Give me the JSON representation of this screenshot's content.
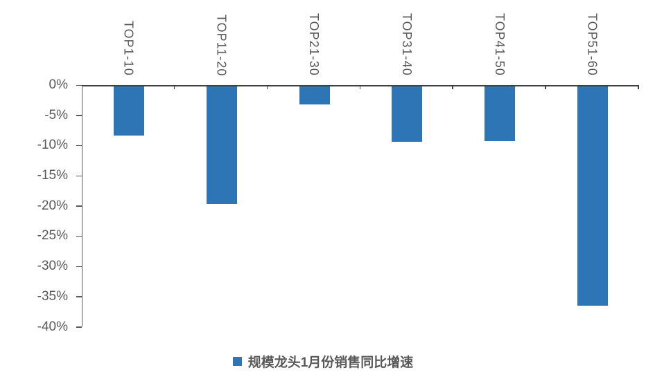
{
  "chart_data": {
    "type": "bar",
    "title": "",
    "categories": [
      "TOP1-10",
      "TOP11-20",
      "TOP21-30",
      "TOP31-40",
      "TOP41-50",
      "TOP51-60"
    ],
    "values": [
      -8.1,
      -19.5,
      -3.0,
      -9.2,
      -9.0,
      -36.3
    ],
    "series_name": "规模龙头1月份销售同比增速",
    "legend_label": "规模龙头1月份销售同比增速",
    "legend_position": "bottom-center",
    "xlabel": "",
    "ylabel": "",
    "ylim": [
      -40,
      0
    ],
    "y_tick_labels": [
      "0%",
      "-5%",
      "-10%",
      "-15%",
      "-20%",
      "-25%",
      "-30%",
      "-35%",
      "-40%"
    ],
    "grid": false,
    "category_label_rotation_deg": 90,
    "colors": {
      "bar": "#2E75B6",
      "axis": "#595959",
      "zero_line": "#404040",
      "tick_label": "#595959",
      "legend_text": "#595959",
      "background": "#FFFFFF"
    }
  }
}
